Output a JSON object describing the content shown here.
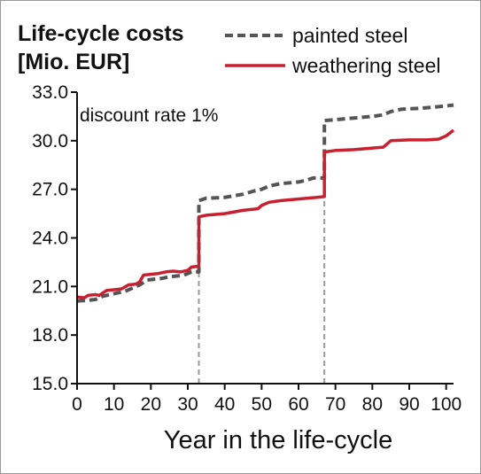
{
  "chart_data": {
    "type": "line",
    "title_lines": [
      "Life-cycle costs",
      "[Mio. EUR]"
    ],
    "xlabel": "Year in the life-cycle",
    "ylabel": "",
    "annotation": "discount rate 1%",
    "xlim": [
      0,
      102
    ],
    "ylim": [
      15,
      33
    ],
    "xticks": [
      0,
      10,
      20,
      30,
      40,
      50,
      60,
      70,
      80,
      90,
      100
    ],
    "yticks": [
      15.0,
      18.0,
      21.0,
      24.0,
      27.0,
      30.0,
      33.0
    ],
    "ytick_labels": [
      "15.0",
      "18.0",
      "21.0",
      "24.0",
      "27.0",
      "30.0",
      "33.0"
    ],
    "grid": false,
    "legend_position": "top-right",
    "reference_lines": [
      {
        "x": 33,
        "y_top": 22.0
      },
      {
        "x": 67,
        "y_top": 26.5
      }
    ],
    "series": [
      {
        "name": "painted steel",
        "color": "#555555",
        "style": "dashed",
        "points": [
          [
            0,
            20.1
          ],
          [
            3,
            20.15
          ],
          [
            5,
            20.2
          ],
          [
            7,
            20.4
          ],
          [
            9,
            20.5
          ],
          [
            11,
            20.6
          ],
          [
            13,
            20.7
          ],
          [
            15,
            20.9
          ],
          [
            17,
            21.1
          ],
          [
            19,
            21.4
          ],
          [
            21,
            21.45
          ],
          [
            23,
            21.5
          ],
          [
            25,
            21.6
          ],
          [
            27,
            21.65
          ],
          [
            29,
            21.7
          ],
          [
            31,
            21.9
          ],
          [
            33,
            21.9
          ],
          [
            33,
            26.3
          ],
          [
            35,
            26.45
          ],
          [
            40,
            26.5
          ],
          [
            45,
            26.7
          ],
          [
            48,
            26.9
          ],
          [
            50,
            27.0
          ],
          [
            52,
            27.2
          ],
          [
            55,
            27.35
          ],
          [
            60,
            27.45
          ],
          [
            62,
            27.55
          ],
          [
            64,
            27.7
          ],
          [
            67,
            27.7
          ],
          [
            67,
            31.25
          ],
          [
            70,
            31.3
          ],
          [
            75,
            31.4
          ],
          [
            80,
            31.5
          ],
          [
            83,
            31.6
          ],
          [
            85,
            31.8
          ],
          [
            88,
            31.95
          ],
          [
            93,
            32.0
          ],
          [
            98,
            32.1
          ],
          [
            102,
            32.2
          ]
        ]
      },
      {
        "name": "weathering steel",
        "color": "#c8202f",
        "style": "solid",
        "points": [
          [
            0,
            20.35
          ],
          [
            2,
            20.3
          ],
          [
            3,
            20.45
          ],
          [
            5,
            20.5
          ],
          [
            6,
            20.45
          ],
          [
            7,
            20.6
          ],
          [
            8,
            20.75
          ],
          [
            10,
            20.8
          ],
          [
            12,
            20.85
          ],
          [
            14,
            21.1
          ],
          [
            16,
            21.15
          ],
          [
            17,
            21.3
          ],
          [
            18,
            21.7
          ],
          [
            20,
            21.75
          ],
          [
            22,
            21.8
          ],
          [
            24,
            21.9
          ],
          [
            26,
            21.95
          ],
          [
            28,
            21.9
          ],
          [
            30,
            22.0
          ],
          [
            31,
            22.2
          ],
          [
            33,
            22.25
          ],
          [
            33,
            25.3
          ],
          [
            35,
            25.4
          ],
          [
            40,
            25.5
          ],
          [
            45,
            25.7
          ],
          [
            49,
            25.8
          ],
          [
            50,
            26.0
          ],
          [
            52,
            26.2
          ],
          [
            55,
            26.3
          ],
          [
            60,
            26.4
          ],
          [
            65,
            26.5
          ],
          [
            67,
            26.55
          ],
          [
            67,
            29.3
          ],
          [
            70,
            29.4
          ],
          [
            75,
            29.45
          ],
          [
            80,
            29.55
          ],
          [
            83,
            29.6
          ],
          [
            85,
            30.0
          ],
          [
            90,
            30.05
          ],
          [
            95,
            30.05
          ],
          [
            98,
            30.1
          ],
          [
            100,
            30.3
          ],
          [
            102,
            30.65
          ]
        ]
      }
    ]
  }
}
